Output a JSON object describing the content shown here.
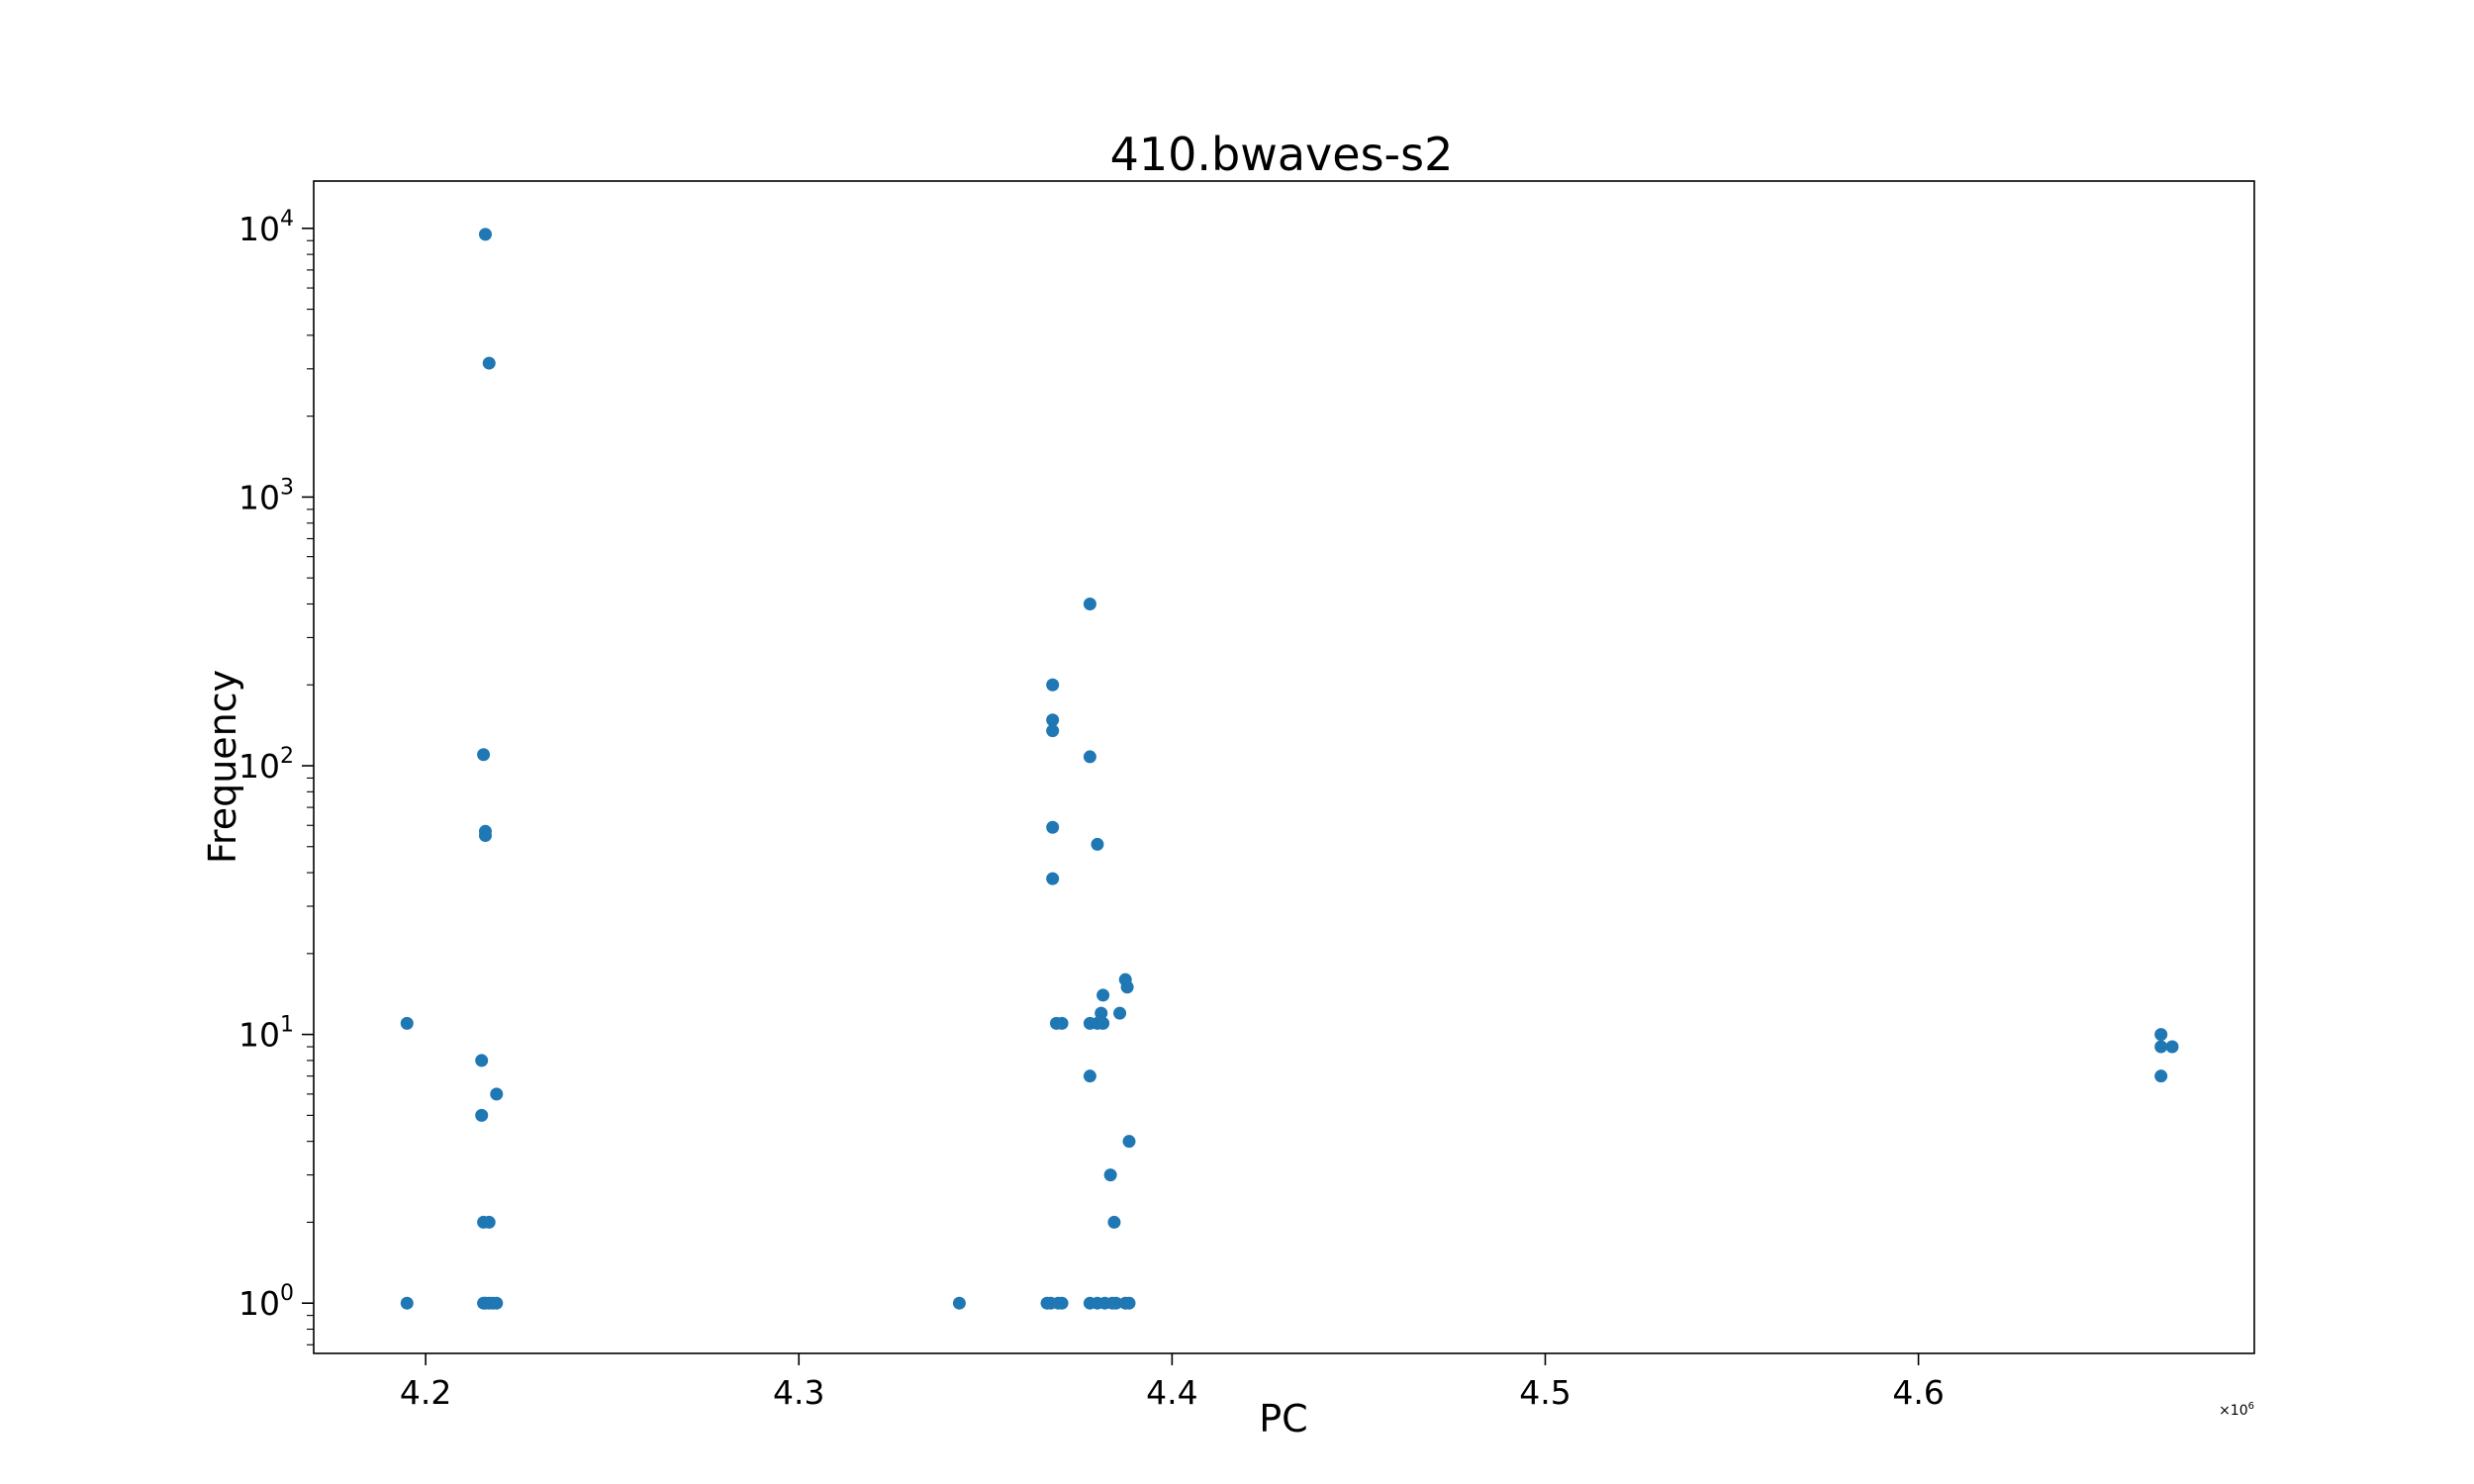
{
  "chart_data": {
    "type": "scatter",
    "title": "410.bwaves-s2",
    "xlabel": "PC",
    "ylabel": "Frequency",
    "x_offset_label": {
      "base": "×10",
      "exponent": "6"
    },
    "xlim": [
      4.17,
      4.69
    ],
    "ylim": [
      0.65,
      15000
    ],
    "yscale": "log",
    "x_ticks": [
      {
        "value": 4.2,
        "label": "4.2"
      },
      {
        "value": 4.3,
        "label": "4.3"
      },
      {
        "value": 4.4,
        "label": "4.4"
      },
      {
        "value": 4.5,
        "label": "4.5"
      },
      {
        "value": 4.6,
        "label": "4.6"
      }
    ],
    "y_ticks": [
      {
        "value": 1,
        "base": "10",
        "exponent": "0"
      },
      {
        "value": 10,
        "base": "10",
        "exponent": "1"
      },
      {
        "value": 100,
        "base": "10",
        "exponent": "2"
      },
      {
        "value": 1000,
        "base": "10",
        "exponent": "3"
      },
      {
        "value": 10000,
        "base": "10",
        "exponent": "4"
      }
    ],
    "grid": false,
    "color": "#1f77b4",
    "points": [
      {
        "x": 4.195,
        "y": 11
      },
      {
        "x": 4.195,
        "y": 1
      },
      {
        "x": 4.216,
        "y": 9500
      },
      {
        "x": 4.217,
        "y": 3150
      },
      {
        "x": 4.2155,
        "y": 110
      },
      {
        "x": 4.216,
        "y": 57
      },
      {
        "x": 4.216,
        "y": 55
      },
      {
        "x": 4.215,
        "y": 8
      },
      {
        "x": 4.219,
        "y": 6
      },
      {
        "x": 4.215,
        "y": 5
      },
      {
        "x": 4.2155,
        "y": 2
      },
      {
        "x": 4.217,
        "y": 2
      },
      {
        "x": 4.2155,
        "y": 1
      },
      {
        "x": 4.216,
        "y": 1
      },
      {
        "x": 4.217,
        "y": 1
      },
      {
        "x": 4.218,
        "y": 1
      },
      {
        "x": 4.219,
        "y": 1
      },
      {
        "x": 4.343,
        "y": 1
      },
      {
        "x": 4.3665,
        "y": 1
      },
      {
        "x": 4.3675,
        "y": 1
      },
      {
        "x": 4.3695,
        "y": 1
      },
      {
        "x": 4.3705,
        "y": 1
      },
      {
        "x": 4.368,
        "y": 200
      },
      {
        "x": 4.368,
        "y": 148
      },
      {
        "x": 4.368,
        "y": 135
      },
      {
        "x": 4.368,
        "y": 59
      },
      {
        "x": 4.368,
        "y": 38
      },
      {
        "x": 4.369,
        "y": 11
      },
      {
        "x": 4.3705,
        "y": 11
      },
      {
        "x": 4.378,
        "y": 400
      },
      {
        "x": 4.378,
        "y": 108
      },
      {
        "x": 4.38,
        "y": 51
      },
      {
        "x": 4.378,
        "y": 11
      },
      {
        "x": 4.38,
        "y": 11
      },
      {
        "x": 4.3815,
        "y": 11
      },
      {
        "x": 4.381,
        "y": 12
      },
      {
        "x": 4.386,
        "y": 12
      },
      {
        "x": 4.3815,
        "y": 14
      },
      {
        "x": 4.3875,
        "y": 16
      },
      {
        "x": 4.388,
        "y": 15
      },
      {
        "x": 4.378,
        "y": 7
      },
      {
        "x": 4.3885,
        "y": 4
      },
      {
        "x": 4.3835,
        "y": 3
      },
      {
        "x": 4.3845,
        "y": 2
      },
      {
        "x": 4.378,
        "y": 1
      },
      {
        "x": 4.38,
        "y": 1
      },
      {
        "x": 4.382,
        "y": 1
      },
      {
        "x": 4.384,
        "y": 1
      },
      {
        "x": 4.385,
        "y": 1
      },
      {
        "x": 4.3875,
        "y": 1
      },
      {
        "x": 4.3885,
        "y": 1
      },
      {
        "x": 4.665,
        "y": 10
      },
      {
        "x": 4.665,
        "y": 9
      },
      {
        "x": 4.668,
        "y": 9
      },
      {
        "x": 4.665,
        "y": 7
      }
    ]
  }
}
